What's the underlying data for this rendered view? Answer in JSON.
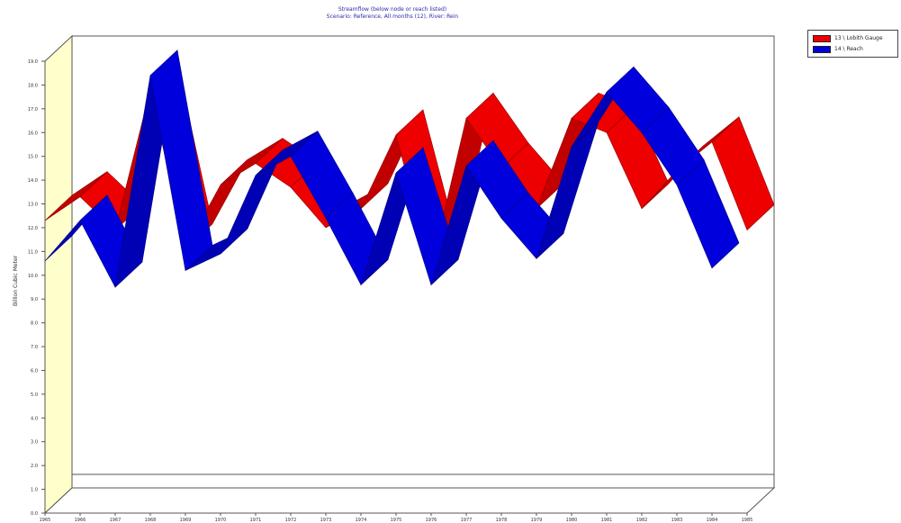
{
  "chart_data": {
    "type": "line",
    "title": "Streamflow (below node or reach listed)",
    "subtitle": "Scenario: Reference,  All months (12),  River: Rein",
    "ylabel": "Billion Cubic Meter",
    "xlabel": "",
    "x": [
      "1965",
      "1966",
      "1967",
      "1968",
      "1969",
      "1970",
      "1971",
      "1972",
      "1973",
      "1974",
      "1975",
      "1976",
      "1977",
      "1978",
      "1979",
      "1980",
      "1981",
      "1982",
      "1983",
      "1984",
      "1985"
    ],
    "ylim": [
      0,
      19
    ],
    "yticks": [
      "0.0",
      "1.0",
      "2.0",
      "3.0",
      "4.0",
      "5.0",
      "6.0",
      "7.0",
      "8.0",
      "9.0",
      "10.0",
      "11.0",
      "12.0",
      "13.0",
      "14.0",
      "15.0",
      "16.0",
      "17.0",
      "18.0",
      "19.0"
    ],
    "grid": false,
    "legend_position": "right",
    "series": [
      {
        "name": "13 \\ Lobith Gauge",
        "color": "#ee0000",
        "values": [
          12.3,
          13.3,
          11.9,
          17.8,
          11.1,
          13.8,
          14.7,
          13.7,
          12.0,
          12.8,
          15.9,
          10.3,
          16.6,
          14.5,
          12.8,
          16.6,
          16.0,
          12.8,
          14.4,
          15.6,
          11.9
        ]
      },
      {
        "name": "14 \\ Reach",
        "color": "#0000dd",
        "values": [
          10.6,
          12.3,
          9.5,
          18.4,
          10.2,
          10.9,
          14.2,
          15.0,
          12.4,
          9.6,
          14.3,
          9.6,
          14.6,
          12.4,
          10.7,
          15.4,
          17.7,
          16.0,
          13.8,
          10.3,
          null
        ]
      }
    ]
  }
}
